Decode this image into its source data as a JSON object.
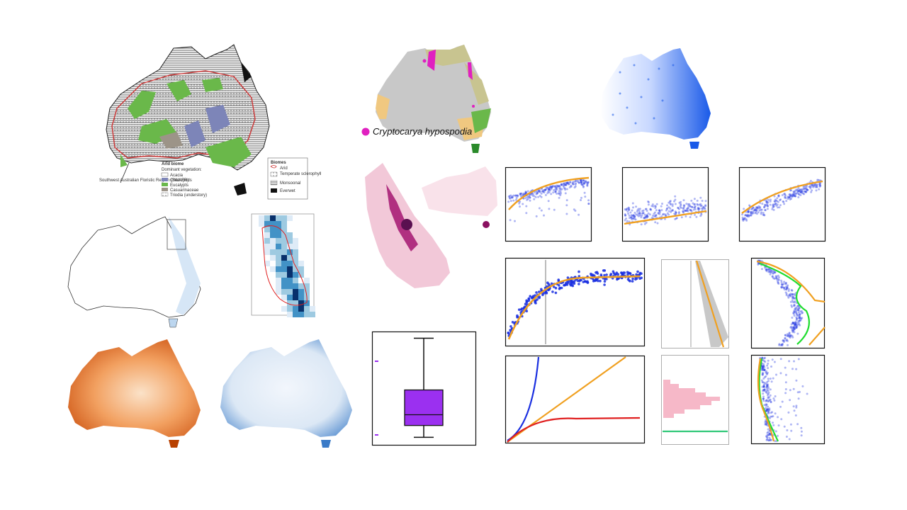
{
  "colors": {
    "accent_orange": "#f0a020",
    "scatter_blue": "#1a2fe0",
    "magenta": "#e020c0",
    "purple_box": "#9b30f0",
    "green_line": "#20dd30",
    "red_curve": "#e02020",
    "pink_hist": "#f6b8c8"
  },
  "biome_map": {
    "annotation": "Southwest Australian Floristic Region (SWAFR)",
    "arid_legend": {
      "title": "Arid biome",
      "subtitle": "Dominant vegetation:",
      "items": [
        "Acacia",
        "Chenopods",
        "Eucalypts",
        "Casuarinaceae",
        "Triodia (understory)"
      ]
    },
    "biomes_legend": {
      "title": "Biomes",
      "items": [
        "Arid",
        "Temperate sclerophyll",
        "Monsoonal",
        "Everwet"
      ]
    }
  },
  "species_map": {
    "legend_label": "Cryptocarya hypospodia"
  },
  "boxplot": {
    "min": 0.05,
    "q1": 0.16,
    "median": 0.26,
    "q3": 0.49,
    "max": 0.97
  }
}
